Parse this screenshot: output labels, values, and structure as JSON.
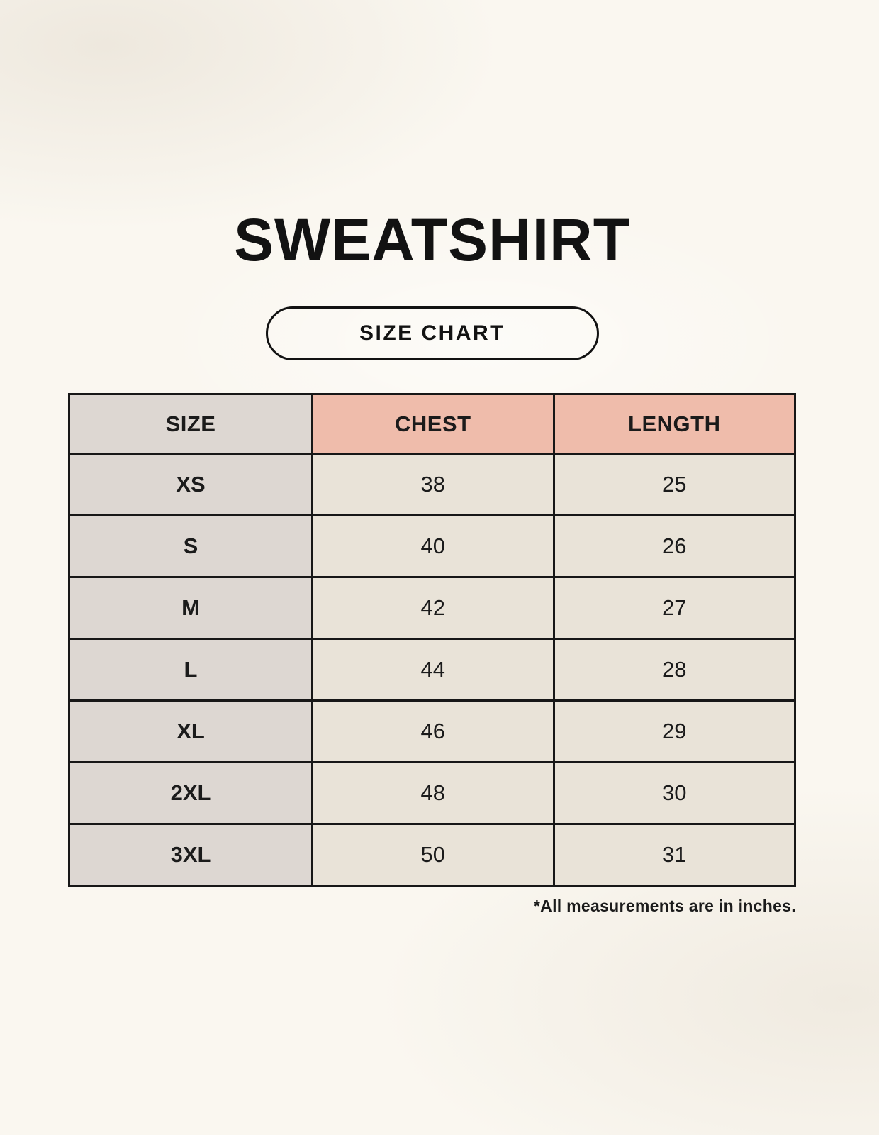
{
  "header": {
    "title": "SWEATSHIRT",
    "badge_label": "SIZE CHART"
  },
  "chart_data": {
    "type": "table",
    "title": "SWEATSHIRT",
    "subtitle": "SIZE CHART",
    "columns": [
      "SIZE",
      "CHEST",
      "LENGTH"
    ],
    "rows": [
      [
        "XS",
        38,
        25
      ],
      [
        "S",
        40,
        26
      ],
      [
        "M",
        42,
        27
      ],
      [
        "L",
        44,
        28
      ],
      [
        "XL",
        46,
        29
      ],
      [
        "2XL",
        48,
        30
      ],
      [
        "3XL",
        50,
        31
      ]
    ],
    "units": "inches"
  },
  "footnote": "*All measurements are in inches.",
  "colors": {
    "background": "#FAF7F0",
    "header_accent": "#EFBCAB",
    "size_column": "#DDD7D2",
    "value_cell": "#E9E3D8",
    "border": "#171717",
    "text": "#1B1B1B"
  }
}
